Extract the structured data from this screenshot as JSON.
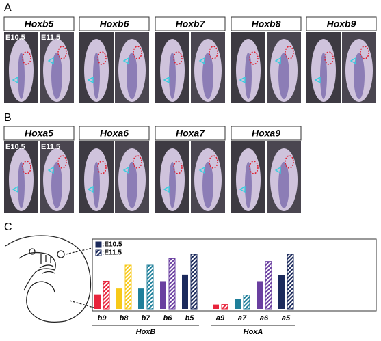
{
  "panel_a": {
    "label": "A",
    "genes": [
      "Hoxb5",
      "Hoxb6",
      "Hoxb7",
      "Hoxb8",
      "Hoxb9"
    ],
    "stages": [
      "E10.5",
      "E11.5"
    ]
  },
  "panel_b": {
    "label": "B",
    "genes": [
      "Hoxa5",
      "Hoxa6",
      "Hoxa7",
      "Hoxa9"
    ],
    "stages": [
      "E10.5",
      "E11.5"
    ]
  },
  "panel_c": {
    "label": "C"
  },
  "chart_data": {
    "type": "bar",
    "groups": [
      {
        "name": "HoxB",
        "categories": [
          "b9",
          "b8",
          "b7",
          "b6",
          "b5"
        ]
      },
      {
        "name": "HoxA",
        "categories": [
          "a9",
          "a7",
          "a6",
          "a5"
        ]
      }
    ],
    "colors": [
      "#e8243c",
      "#f7c919",
      "#1f7f9a",
      "#6a3fa0",
      "#1b2a5c",
      "#e8243c",
      "#1f7f9a",
      "#6a3fa0",
      "#1b2a5c"
    ],
    "series": [
      {
        "name": ":E10.5",
        "color": "#1b2a5c",
        "values": [
          20,
          28,
          28,
          38,
          47,
          6,
          14,
          38,
          46
        ]
      },
      {
        "name": ":E11.5",
        "color": "#1b2a5c",
        "hatched": true,
        "values": [
          38,
          60,
          60,
          69,
          75,
          6,
          19,
          65,
          75
        ]
      }
    ]
  }
}
